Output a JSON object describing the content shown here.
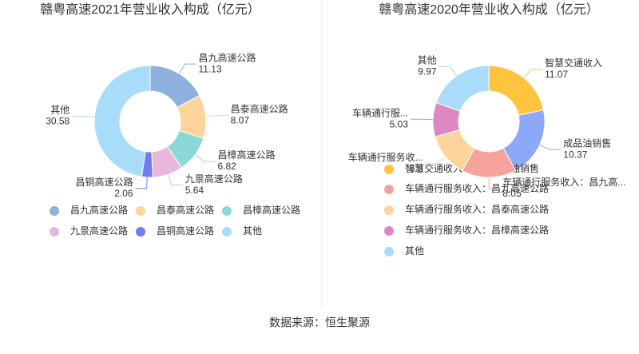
{
  "chart_data": [
    {
      "type": "donut",
      "title": "赣粤高速2021年营业收入构成（亿元）",
      "categories": [
        "昌九高速公路",
        "昌泰高速公路",
        "昌樟高速公路",
        "九景高速公路",
        "昌铜高速公路",
        "其他"
      ],
      "slice_labels": [
        "昌九高速公路",
        "昌泰高速公路",
        "昌樟高速公路",
        "九景高速公路",
        "昌铜高速公路",
        "其他"
      ],
      "values": [
        11.13,
        8.07,
        6.82,
        5.64,
        2.06,
        30.58
      ],
      "colors": [
        "#8eb0dd",
        "#fdd59c",
        "#8ad9d6",
        "#e8b8dc",
        "#6f7df0",
        "#a8dcf8"
      ]
    },
    {
      "type": "donut",
      "title": "赣粤高速2020年营业收入构成（亿元）",
      "categories": [
        "智慧交通收入",
        "成品油销售",
        "车辆通行服务收入：昌九高速公路",
        "车辆通行服务收入：昌泰高速公路",
        "车辆通行服务收入：昌樟高速公路",
        "其他"
      ],
      "slice_labels": [
        "智慧交通收入",
        "成品油销售",
        "车辆通行服务收入：昌九高...",
        "车辆通行服务收...",
        "车辆通行服...",
        "其他"
      ],
      "values": [
        11.07,
        10.37,
        8.05,
        6.5,
        5.03,
        9.97
      ],
      "colors": [
        "#fec43d",
        "#8ca8f8",
        "#f6a39b",
        "#fdd59c",
        "#dd88c2",
        "#a8dcf8"
      ]
    }
  ],
  "source": "数据来源：恒生聚源"
}
